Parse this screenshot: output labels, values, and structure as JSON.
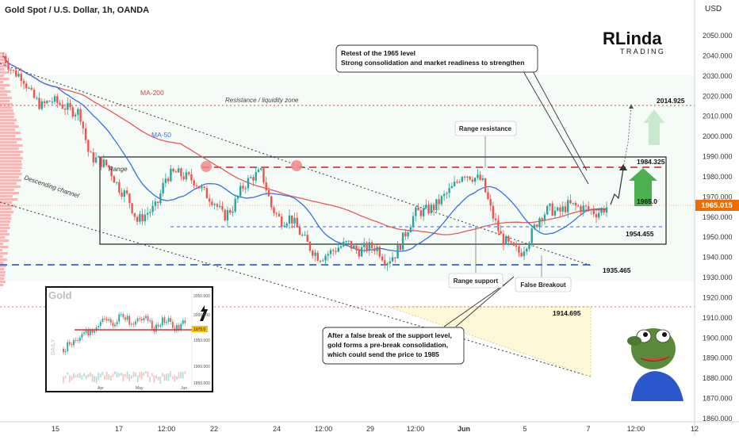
{
  "header": {
    "symbol_title": "Gold Spot / U.S. Dollar, 1h, OANDA",
    "currency": "USD"
  },
  "brand": {
    "logo_text": "RLinda",
    "logo_sub": "TRADING"
  },
  "colors": {
    "bull": "#26a69a",
    "bear": "#ef5350",
    "ma200": "#e05c5c",
    "ma50": "#3d6fd6",
    "accent_green": "#4caf50",
    "price_badge": "#ef6c00"
  },
  "labels": {
    "ma200": "MA-200",
    "ma50": "MA-50",
    "resistance_zone": "Resistance / liquidity zone",
    "range": "Range",
    "channel": "Descending channel",
    "range_resistance": "Range resistance",
    "range_support": "Range support",
    "false_breakout": "False Breakout",
    "top_note_line1": "Retest of the 1965 level",
    "top_note_line2": "Strong consolidation and market readiness to strengthen",
    "bottom_note_line1": "After a false break of the support level,",
    "bottom_note_line2": "gold forms a pre-break consolidation,",
    "bottom_note_line3": "which could send the price to 1985"
  },
  "levels": {
    "l2014": "2014.925",
    "l1984": "1984.325",
    "l1965": "1965.0",
    "l1954": "1954.455",
    "l1935": "1935.465",
    "l1914": "1914.695",
    "current": "1965.015"
  },
  "inset": {
    "title": "Gold",
    "side_label": "DAILY",
    "x_ticks": [
      "Apr",
      "May",
      "Jun"
    ],
    "y_ticks": [
      "2050.000",
      "2000.000",
      "1950.000",
      "1900.000",
      "1850.000"
    ],
    "price": "1975.0"
  },
  "chart_data": {
    "type": "candlestick",
    "title": "Gold Spot / U.S. Dollar, 1h, OANDA",
    "y_axis_label": "USD",
    "ylim": [
      1858,
      2062
    ],
    "y_ticks": [
      "2050.000",
      "2040.000",
      "2030.000",
      "2020.000",
      "2010.000",
      "2000.000",
      "1990.000",
      "1980.000",
      "1970.000",
      "1960.000",
      "1950.000",
      "1940.000",
      "1930.000",
      "1920.000",
      "1910.000",
      "1900.000",
      "1890.000",
      "1880.000",
      "1870.000",
      "1860.000"
    ],
    "x_ticks": [
      "15",
      "17",
      "12:00",
      "22",
      "24",
      "12:00",
      "29",
      "12:00",
      "Jun",
      "5",
      "7",
      "12:00",
      "12"
    ],
    "ma_lines": [
      "MA-200",
      "MA-50"
    ],
    "key_levels": [
      2014.925,
      1984.325,
      1965.0,
      1954.455,
      1935.465,
      1914.695
    ],
    "current_price": 1965.015,
    "price_path": [
      2040,
      2032,
      2030,
      2020,
      2015,
      2018,
      2016,
      2013,
      2012,
      1990,
      1988,
      1985,
      1975,
      1970,
      1958,
      1962,
      1965,
      1980,
      1982,
      1980,
      1978,
      1972,
      1968,
      1960,
      1965,
      1975,
      1980,
      1982,
      1965,
      1958,
      1960,
      1952,
      1945,
      1940,
      1942,
      1945,
      1947,
      1943,
      1945,
      1945,
      1938,
      1942,
      1952,
      1962,
      1963,
      1965,
      1970,
      1975,
      1982,
      1980,
      1978,
      1962,
      1950,
      1945,
      1942,
      1950,
      1960,
      1964,
      1962,
      1966,
      1965,
      1964,
      1962,
      1965
    ]
  }
}
